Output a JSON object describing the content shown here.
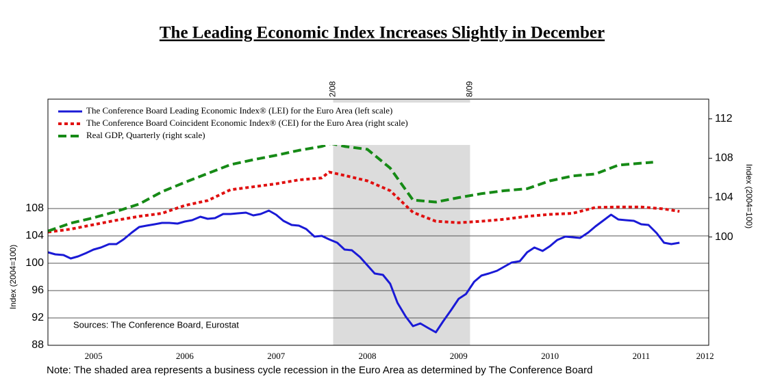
{
  "chart_data": {
    "type": "line",
    "title": "The Leading Economic Index Increases Slightly in December",
    "ylabel": "Index (2004=100)",
    "y2label": "Index (2004=100)",
    "source": "Sources: The Conference Board, Eurostat",
    "note": "Note: The shaded area represents a business cycle recession in the Euro Area as determined by The Conference Board",
    "shading": {
      "start": 2008.125,
      "end": 2009.625,
      "start_label": "2/08",
      "end_label": "8/09",
      "color": "#dcdcdc"
    },
    "xlim": [
      2005,
      2012.24
    ],
    "xticks": [
      {
        "value": 2005.5,
        "label": "2005"
      },
      {
        "value": 2006.5,
        "label": "2006"
      },
      {
        "value": 2007.5,
        "label": "2007"
      },
      {
        "value": 2008.5,
        "label": "2008"
      },
      {
        "value": 2009.5,
        "label": "2009"
      },
      {
        "value": 2010.5,
        "label": "2010"
      },
      {
        "value": 2011.5,
        "label": "2011"
      },
      {
        "value": 2012.2,
        "label": "2012"
      }
    ],
    "ylim": [
      88,
      124
    ],
    "yticks": [
      88,
      92,
      96,
      100,
      104,
      108
    ],
    "y2lim": [
      89,
      114
    ],
    "y2ticks": [
      100,
      104,
      108,
      112
    ],
    "grid": true,
    "legend": "upper left",
    "series": [
      {
        "name": "The Conference Board Leading Economic Index® (LEI) for the Euro Area (left scale)",
        "color": "#1a1ad6",
        "dash": "solid",
        "axis": "y",
        "x": [
          2005.0,
          2005.08,
          2005.17,
          2005.25,
          2005.33,
          2005.42,
          2005.5,
          2005.58,
          2005.67,
          2005.75,
          2005.83,
          2005.92,
          2006.0,
          2006.08,
          2006.17,
          2006.25,
          2006.33,
          2006.42,
          2006.5,
          2006.58,
          2006.67,
          2006.75,
          2006.83,
          2006.92,
          2007.0,
          2007.08,
          2007.17,
          2007.25,
          2007.33,
          2007.42,
          2007.5,
          2007.58,
          2007.67,
          2007.75,
          2007.83,
          2007.92,
          2008.0,
          2008.08,
          2008.17,
          2008.25,
          2008.33,
          2008.42,
          2008.5,
          2008.58,
          2008.67,
          2008.75,
          2008.83,
          2008.92,
          2009.0,
          2009.08,
          2009.17,
          2009.25,
          2009.33,
          2009.42,
          2009.5,
          2009.58,
          2009.67,
          2009.75,
          2009.83,
          2009.92,
          2010.0,
          2010.08,
          2010.17,
          2010.25,
          2010.33,
          2010.42,
          2010.5,
          2010.58,
          2010.67,
          2010.75,
          2010.83,
          2010.92,
          2011.0,
          2011.08,
          2011.17,
          2011.25,
          2011.33,
          2011.42,
          2011.5,
          2011.58,
          2011.67,
          2011.75,
          2011.83,
          2011.92
        ],
        "values": [
          101.6,
          101.3,
          101.2,
          100.7,
          101.0,
          101.5,
          102.0,
          102.3,
          102.8,
          102.8,
          103.5,
          104.5,
          105.3,
          105.5,
          105.7,
          105.9,
          105.9,
          105.8,
          106.1,
          106.3,
          106.8,
          106.5,
          106.6,
          107.2,
          107.2,
          107.3,
          107.4,
          107.0,
          107.2,
          107.7,
          107.1,
          106.2,
          105.6,
          105.5,
          105.0,
          103.9,
          104.0,
          103.5,
          103.0,
          102.0,
          101.9,
          100.9,
          99.7,
          98.5,
          98.3,
          97.0,
          94.2,
          92.2,
          90.8,
          91.2,
          90.5,
          89.9,
          91.5,
          93.2,
          94.8,
          95.5,
          97.3,
          98.2,
          98.5,
          98.9,
          99.5,
          100.1,
          100.3,
          101.6,
          102.3,
          101.8,
          102.5,
          103.4,
          103.9,
          103.8,
          103.7,
          104.5,
          105.4,
          106.2,
          107.1,
          106.4,
          106.3,
          106.2,
          105.7,
          105.6,
          104.4,
          103.0,
          102.8,
          103.0
        ]
      },
      {
        "name": "The Conference Board Coincident Economic Index® (CEI) for the Euro Area (right scale)",
        "color": "#e01010",
        "dash": "dotted",
        "axis": "y2",
        "x": [
          2005.0,
          2005.25,
          2005.5,
          2005.75,
          2006.0,
          2006.25,
          2006.5,
          2006.75,
          2007.0,
          2007.25,
          2007.5,
          2007.75,
          2008.0,
          2008.08,
          2008.25,
          2008.5,
          2008.75,
          2009.0,
          2009.25,
          2009.5,
          2009.75,
          2010.0,
          2010.25,
          2010.5,
          2010.75,
          2011.0,
          2011.25,
          2011.5,
          2011.75,
          2011.92
        ],
        "values": [
          100.5,
          100.8,
          101.25,
          101.7,
          102.1,
          102.4,
          103.2,
          103.7,
          104.8,
          105.1,
          105.4,
          105.8,
          106.0,
          106.6,
          106.25,
          105.7,
          104.7,
          102.5,
          101.6,
          101.45,
          101.6,
          101.8,
          102.1,
          102.3,
          102.4,
          103.0,
          103.05,
          103.05,
          102.85,
          102.6
        ]
      },
      {
        "name": "Real GDP, Quarterly (right scale)",
        "color": "#168a16",
        "dash": "dashed",
        "axis": "y2",
        "x": [
          2005.0,
          2005.25,
          2005.5,
          2005.75,
          2006.0,
          2006.25,
          2006.5,
          2006.75,
          2007.0,
          2007.25,
          2007.5,
          2007.75,
          2008.0,
          2008.1,
          2008.25,
          2008.5,
          2008.75,
          2009.0,
          2009.25,
          2009.5,
          2009.75,
          2010.0,
          2010.25,
          2010.5,
          2010.75,
          2011.0,
          2011.25,
          2011.5,
          2011.63
        ],
        "values": [
          100.6,
          101.4,
          101.95,
          102.6,
          103.35,
          104.6,
          105.55,
          106.45,
          107.35,
          107.85,
          108.3,
          108.8,
          109.2,
          109.5,
          109.2,
          108.9,
          107.0,
          103.75,
          103.55,
          104.0,
          104.4,
          104.7,
          104.9,
          105.7,
          106.2,
          106.4,
          107.3,
          107.5,
          107.6
        ]
      }
    ]
  }
}
